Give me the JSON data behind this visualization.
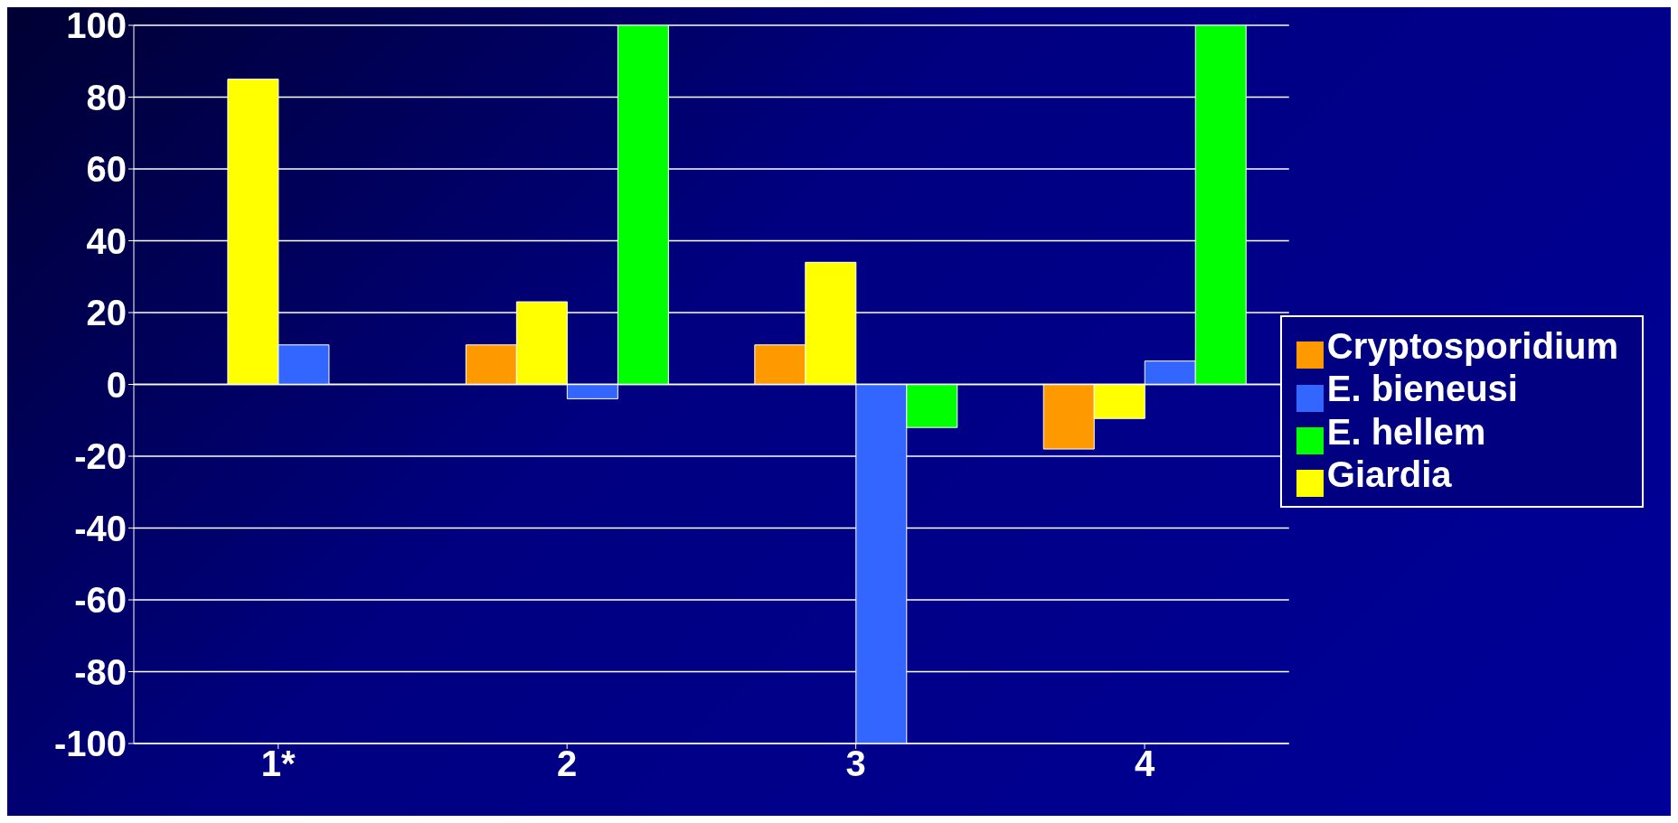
{
  "chart_data": {
    "type": "bar",
    "categories": [
      "1*",
      "2",
      "3",
      "4"
    ],
    "series": [
      {
        "name": "Cryptosporidium",
        "color": "#ff9900",
        "values": [
          null,
          11,
          11,
          -18
        ]
      },
      {
        "name": "Giardia",
        "color": "#ffff00",
        "values": [
          85,
          23,
          34,
          -9.5
        ]
      },
      {
        "name": "E. bieneusi",
        "color": "#3366ff",
        "values": [
          11,
          -4,
          -100,
          6.5
        ]
      },
      {
        "name": "E. hellem",
        "color": "#00ff00",
        "values": [
          null,
          100,
          -12,
          100
        ]
      }
    ],
    "ylim": [
      -100,
      100
    ],
    "yticks": [
      -100,
      -80,
      -60,
      -40,
      -20,
      0,
      20,
      40,
      60,
      80,
      100
    ],
    "grid": "y",
    "legend": "right"
  }
}
